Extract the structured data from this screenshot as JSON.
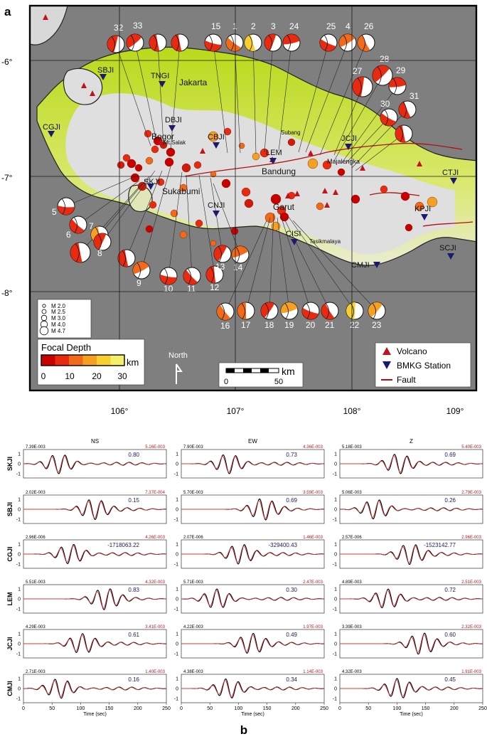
{
  "panel_a": {
    "label": "a",
    "lat_ticks": [
      "-6°",
      "-7°",
      "-8°"
    ],
    "lon_ticks": [
      "106°",
      "107°",
      "108°",
      "109°"
    ],
    "cities": [
      "Jakarta",
      "Bogor",
      "Mt.Salak",
      "Sukabumi",
      "Bandung",
      "Subang",
      "Majalengka",
      "Garut",
      "Tasikmalaya"
    ],
    "stations": [
      {
        "code": "SBJI"
      },
      {
        "code": "TNGI"
      },
      {
        "code": "CGJI"
      },
      {
        "code": "DBJI"
      },
      {
        "code": "CBJI"
      },
      {
        "code": "LEM"
      },
      {
        "code": "JCJI"
      },
      {
        "code": "SKJI"
      },
      {
        "code": "CNJI"
      },
      {
        "code": "CISI"
      },
      {
        "code": "CMJI"
      },
      {
        "code": "CTJI"
      },
      {
        "code": "KPJI"
      },
      {
        "code": "SCJI"
      }
    ],
    "beachballs": [
      "1",
      "2",
      "3",
      "4",
      "5",
      "6",
      "7",
      "8",
      "9",
      "10",
      "11",
      "12",
      "13",
      "14",
      "15",
      "16",
      "17",
      "18",
      "19",
      "20",
      "21",
      "22",
      "23",
      "24",
      "25",
      "26",
      "27",
      "28",
      "29",
      "30",
      "31",
      "32",
      "33"
    ],
    "magnitude_legend": [
      "M 2.0",
      "M 2.5",
      "M 3.0",
      "M 4.0",
      "M 4.7"
    ],
    "focal_depth": {
      "title": "Focal Depth",
      "unit": "km",
      "ticks": [
        "0",
        "10",
        "20",
        "30"
      ],
      "colors": [
        "#c80000",
        "#e82a10",
        "#f06a1a",
        "#f5a020",
        "#f7d030",
        "#f3f06a"
      ]
    },
    "north_label": "North",
    "scalebar": {
      "ticks": [
        "0",
        "50"
      ],
      "unit": "km"
    },
    "legend_items": [
      "Volcano",
      "BMKG Station",
      "Fault"
    ],
    "colors": {
      "volcano": "#c0141c",
      "station": "#1a1a6e",
      "fault": "#b01010",
      "sea": "#7f7f7f"
    }
  },
  "panel_b": {
    "label": "b",
    "columns": [
      "NS",
      "EW",
      "Z"
    ],
    "x_ticks": [
      "0",
      "50",
      "100",
      "150",
      "200",
      "250"
    ],
    "xlabel": "Time (sec)",
    "y_ticks": [
      "1",
      "0",
      "-1"
    ],
    "rows": [
      {
        "station": "SKJI",
        "panels": [
          {
            "left": "7.39E-003",
            "right": "5.16E-003",
            "vr": "0.80"
          },
          {
            "left": "7.90E-003",
            "right": "4.36E-003",
            "vr": "0.73"
          },
          {
            "left": "5.18E-003",
            "right": "5.40E-003",
            "vr": "0.69"
          }
        ]
      },
      {
        "station": "SBJI",
        "panels": [
          {
            "left": "2.02E-003",
            "right": "7.37E-004",
            "vr": "0.15"
          },
          {
            "left": "5.70E-003",
            "right": "3.59E-003",
            "vr": "0.69"
          },
          {
            "left": "5.06E-003",
            "right": "2.79E-003",
            "vr": "0.26"
          }
        ]
      },
      {
        "station": "CGJI",
        "panels": [
          {
            "left": "2.96E-006",
            "right": "4.26E-003",
            "vr": "-1718063.22"
          },
          {
            "left": "2.07E-006",
            "right": "1.46E-003",
            "vr": "-329400.43"
          },
          {
            "left": "2.57E-006",
            "right": "2.96E-003",
            "vr": "-1523142.77"
          }
        ]
      },
      {
        "station": "LEM",
        "panels": [
          {
            "left": "5.51E-003",
            "right": "4.32E-003",
            "vr": "0.83"
          },
          {
            "left": "5.71E-003",
            "right": "2.47E-003",
            "vr": "0.30"
          },
          {
            "left": "4.89E-003",
            "right": "2.51E-003",
            "vr": "0.72"
          }
        ]
      },
      {
        "station": "JCJI",
        "panels": [
          {
            "left": "4.29E-003",
            "right": "3.41E-003",
            "vr": "0.61"
          },
          {
            "left": "4.22E-003",
            "right": "1.97E-003",
            "vr": "0.49"
          },
          {
            "left": "3.39E-003",
            "right": "2.32E-003",
            "vr": "0.60"
          }
        ]
      },
      {
        "station": "CMJI",
        "panels": [
          {
            "left": "2.71E-003",
            "right": "1.40E-003",
            "vr": "0.16"
          },
          {
            "left": "4.38E-003",
            "right": "1.14E-003",
            "vr": "0.34"
          },
          {
            "left": "4.32E-003",
            "right": "1.91E-003",
            "vr": "0.45"
          }
        ]
      }
    ],
    "colors": {
      "observed": "#000000",
      "synthetic": "#d03a3a",
      "amp_right": "#c0141c",
      "vr": "#1a1a6e"
    }
  }
}
